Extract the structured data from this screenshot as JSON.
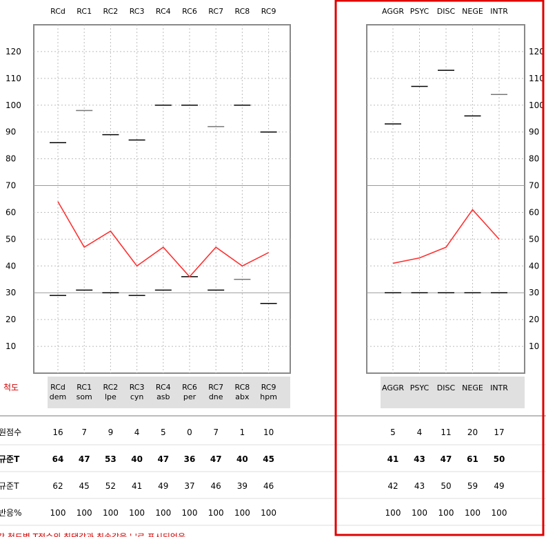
{
  "chart_data": [
    {
      "type": "line",
      "top_labels": [
        "RCd",
        "RC1",
        "RC2",
        "RC3",
        "RC4",
        "RC6",
        "RC7",
        "RC8",
        "RC9"
      ],
      "bottom_labels": [
        {
          "code": "RCd",
          "abbr": "dem"
        },
        {
          "code": "RC1",
          "abbr": "som"
        },
        {
          "code": "RC2",
          "abbr": "lpe"
        },
        {
          "code": "RC3",
          "abbr": "cyn"
        },
        {
          "code": "RC4",
          "abbr": "asb"
        },
        {
          "code": "RC6",
          "abbr": "per"
        },
        {
          "code": "RC7",
          "abbr": "dne"
        },
        {
          "code": "RC8",
          "abbr": "abx"
        },
        {
          "code": "RC9",
          "abbr": "hpm"
        }
      ],
      "ylim": [
        0,
        130
      ],
      "yticks": [
        10,
        20,
        30,
        40,
        50,
        60,
        70,
        80,
        90,
        100,
        110,
        120
      ],
      "ref_lines": [
        30,
        70
      ],
      "profile_T": [
        64,
        47,
        53,
        40,
        47,
        36,
        47,
        40,
        45
      ],
      "max_marks": [
        86,
        98,
        89,
        87,
        100,
        100,
        92,
        100,
        90
      ],
      "min_marks": [
        29,
        31,
        30,
        29,
        31,
        36,
        31,
        35,
        26
      ]
    },
    {
      "type": "line",
      "top_labels": [
        "AGGR",
        "PSYC",
        "DISC",
        "NEGE",
        "INTR"
      ],
      "bottom_labels": [
        "AGGR",
        "PSYC",
        "DISC",
        "NEGE",
        "INTR"
      ],
      "ylim": [
        0,
        130
      ],
      "yticks": [
        10,
        20,
        30,
        40,
        50,
        60,
        70,
        80,
        90,
        100,
        110,
        120
      ],
      "ref_lines": [
        30,
        70
      ],
      "profile_T": [
        41,
        43,
        47,
        61,
        50
      ],
      "max_marks": [
        93,
        107,
        113,
        96,
        104
      ],
      "min_marks": [
        30,
        30,
        30,
        30,
        30
      ]
    }
  ],
  "legend_label": "척도",
  "table": {
    "rows": [
      {
        "label": "원점수",
        "bold": false,
        "left": [
          "16",
          "7",
          "9",
          "4",
          "5",
          "0",
          "7",
          "1",
          "10"
        ],
        "right": [
          "5",
          "4",
          "11",
          "20",
          "17"
        ]
      },
      {
        "label": "규준T",
        "bold": true,
        "left": [
          "64",
          "47",
          "53",
          "40",
          "47",
          "36",
          "47",
          "40",
          "45"
        ],
        "right": [
          "41",
          "43",
          "47",
          "61",
          "50"
        ]
      },
      {
        "label": "규준T",
        "bold": false,
        "left": [
          "62",
          "45",
          "52",
          "41",
          "49",
          "37",
          "46",
          "39",
          "46"
        ],
        "right": [
          "42",
          "43",
          "50",
          "59",
          "49"
        ]
      },
      {
        "label": "반응%",
        "bold": false,
        "left": [
          "100",
          "100",
          "100",
          "100",
          "100",
          "100",
          "100",
          "100",
          "100"
        ],
        "right": [
          "100",
          "100",
          "100",
          "100",
          "100"
        ]
      }
    ]
  },
  "footnote": "각 척도별 T점수의 최댓값과 최솟값을 '-'로 표시되었음",
  "colors": {
    "profile": "#ff3030",
    "highlight": "#e00000",
    "grid": "#999999",
    "frame": "#888888",
    "band": "#e0e0e0"
  }
}
